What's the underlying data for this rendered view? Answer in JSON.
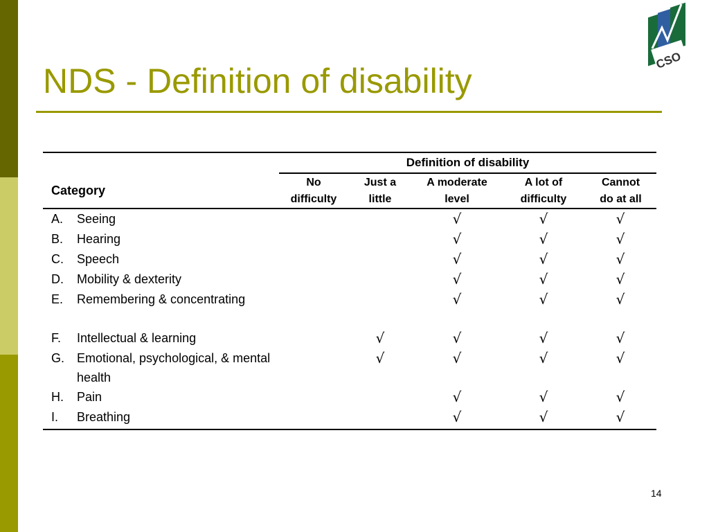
{
  "slide": {
    "title": "NDS - Definition of disability",
    "page_number": "14",
    "colors": {
      "accent": "#999900",
      "sidebar_dark": "#666600",
      "sidebar_light": "#cccc66",
      "logo_green": "#1a6b3a",
      "logo_blue": "#2f5fa0"
    },
    "logo_text": "CSO"
  },
  "table": {
    "group_header": "Definition of disability",
    "category_header": "Category",
    "columns": [
      {
        "line1": "No",
        "line2": "difficulty"
      },
      {
        "line1": "Just a",
        "line2": "little"
      },
      {
        "line1": "A moderate",
        "line2": "level"
      },
      {
        "line1": "A lot of",
        "line2": "difficulty"
      },
      {
        "line1": "Cannot",
        "line2": "do at all"
      }
    ],
    "check_symbol": "√",
    "rows": [
      {
        "letter": "A.",
        "name": "Seeing",
        "checks": [
          false,
          false,
          true,
          true,
          true
        ]
      },
      {
        "letter": "B.",
        "name": "Hearing",
        "checks": [
          false,
          false,
          true,
          true,
          true
        ]
      },
      {
        "letter": "C.",
        "name": "Speech",
        "checks": [
          false,
          false,
          true,
          true,
          true
        ]
      },
      {
        "letter": "D.",
        "name": "Mobility & dexterity",
        "checks": [
          false,
          false,
          true,
          true,
          true
        ]
      },
      {
        "letter": "E.",
        "name": "Remembering & concentrating",
        "checks": [
          false,
          false,
          true,
          true,
          true
        ]
      },
      {
        "letter": "F.",
        "name": "Intellectual & learning",
        "checks": [
          false,
          true,
          true,
          true,
          true
        ]
      },
      {
        "letter": "G.",
        "name": "Emotional, psychological, & mental health",
        "checks": [
          false,
          true,
          true,
          true,
          true
        ]
      },
      {
        "letter": "H.",
        "name": "Pain",
        "checks": [
          false,
          false,
          true,
          true,
          true
        ]
      },
      {
        "letter": "I.",
        "name": "Breathing",
        "checks": [
          false,
          false,
          true,
          true,
          true
        ]
      }
    ]
  }
}
